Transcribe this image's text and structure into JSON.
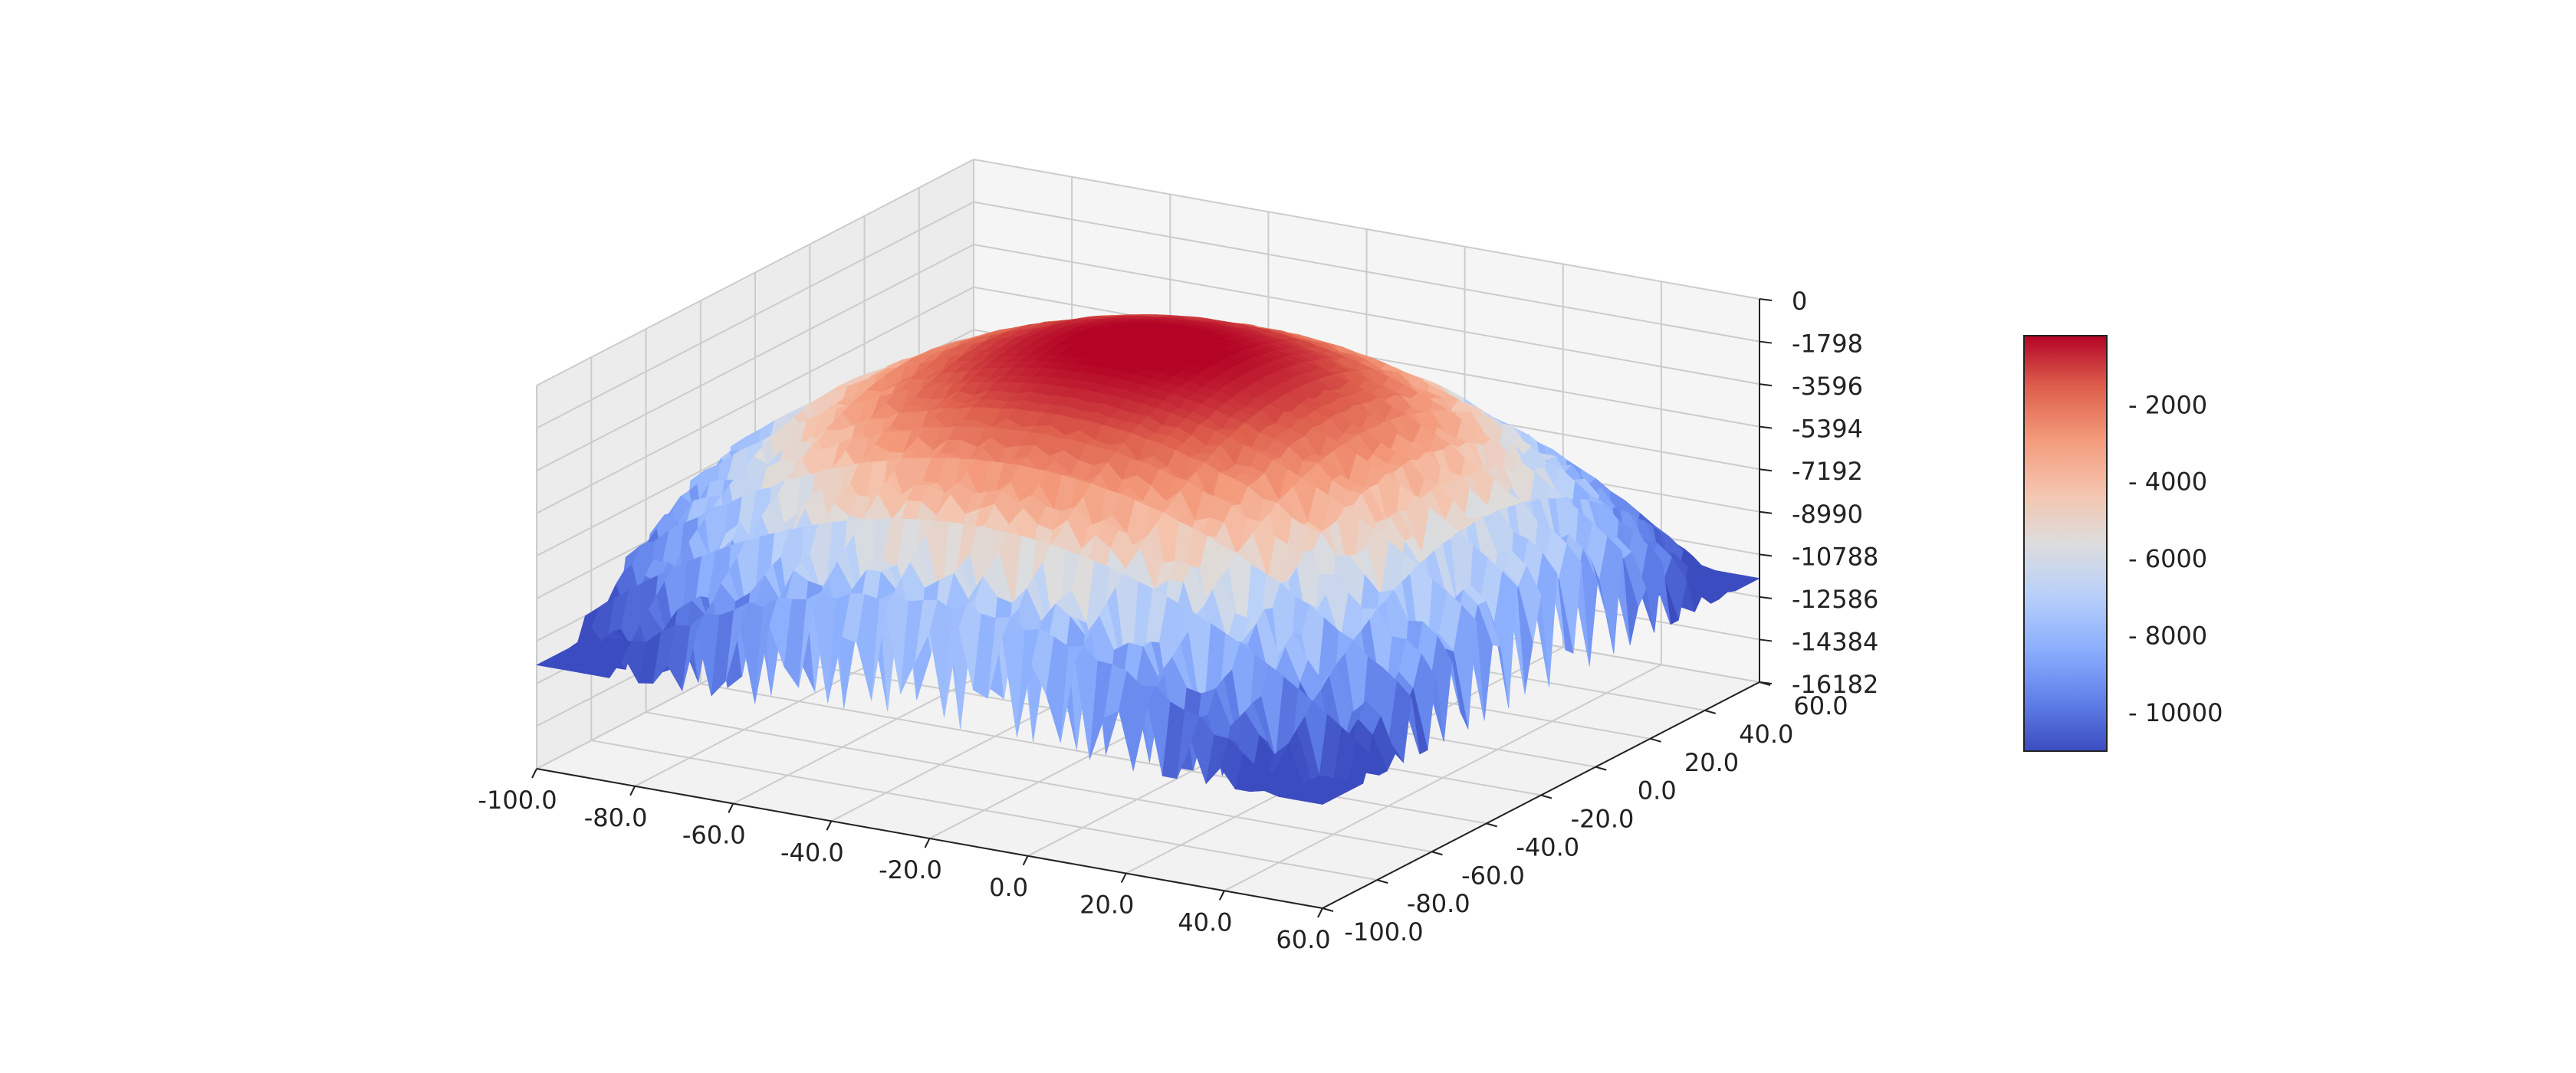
{
  "chart_data": {
    "type": "surface",
    "colormap": "coolwarm",
    "x_ticks": [
      "-100.0",
      "-80.0",
      "-60.0",
      "-40.0",
      "-20.0",
      "0.0",
      "20.0",
      "40.0",
      "60.0"
    ],
    "y_ticks": [
      "-100.0",
      "-80.0",
      "-60.0",
      "-40.0",
      "-20.0",
      "0.0",
      "20.0",
      "40.0",
      "60.0"
    ],
    "z_ticks": [
      "0",
      "-1798",
      "-3596",
      "-5394",
      "-7192",
      "-8990",
      "-10788",
      "-12586",
      "-14384",
      "-16182"
    ],
    "x_range": [
      -100,
      60
    ],
    "y_range": [
      -100,
      60
    ],
    "z_range": [
      -16182,
      0
    ],
    "colorbar_ticks": [
      "- 2000",
      "- 4000",
      "- 6000",
      "- 8000",
      "- 10000"
    ],
    "colorbar_values": [
      2000,
      4000,
      6000,
      8000,
      10000
    ],
    "colorbar_range": [
      200,
      11000
    ],
    "surface_description": "dome-shaped oscillating surface, peak near center (~0), deep oscillating spikes near edges down to about -11000",
    "grid": true,
    "colors": {
      "low": "#3b4cc0",
      "mid": "#dddddd",
      "high": "#b40426",
      "pane": "#f2f2f2",
      "grid": "#cccccc"
    }
  }
}
